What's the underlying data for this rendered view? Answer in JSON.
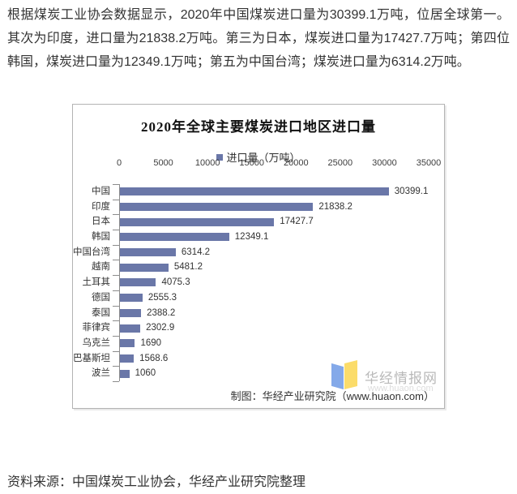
{
  "intro": {
    "text": "根据煤炭工业协会数据显示，2020年中国煤炭进口量为30399.1万吨，位居全球第一。其次为印度，进口量为21838.2万吨。第三为日本，煤炭进口量为17427.7万吨；第四位韩国，煤炭进口量为12349.1万吨；第五为中国台湾；煤炭进口量为6314.2万吨。"
  },
  "chart_data": {
    "type": "bar",
    "orientation": "horizontal",
    "title": "2020年全球主要煤炭进口地区进口量",
    "legend": "进口量（万吨）",
    "legend_position": "top",
    "categories": [
      "中国",
      "印度",
      "日本",
      "韩国",
      "中国台湾",
      "越南",
      "土耳其",
      "德国",
      "泰国",
      "菲律宾",
      "乌克兰",
      "巴基斯坦",
      "波兰"
    ],
    "values": [
      30399.1,
      21838.2,
      17427.7,
      12349.1,
      6314.2,
      5481.2,
      4075.3,
      2555.3,
      2388.2,
      2302.9,
      1690,
      1568.6,
      1060
    ],
    "value_labels": [
      "30399.1",
      "21838.2",
      "17427.7",
      "12349.1",
      "6314.2",
      "5481.2",
      "4075.3",
      "2555.3",
      "2388.2",
      "2302.9",
      "1690",
      "1568.6",
      "1060"
    ],
    "x_ticks": [
      0,
      5000,
      10000,
      15000,
      20000,
      25000,
      30000,
      35000
    ],
    "xlim": [
      0,
      35000
    ],
    "grid": false,
    "bar_color": "#6A77A8",
    "axis_color": "#8c8c8c",
    "credit": "制图：华经产业研究院（www.huaon.com）"
  },
  "watermark": {
    "brand": "华经情报网",
    "url": "www.huaon.com",
    "logo_blue": "#84a9e9",
    "logo_yellow": "#fbdc6a"
  },
  "source": {
    "text": "资料来源：中国煤炭工业协会，华经产业研究院整理"
  }
}
